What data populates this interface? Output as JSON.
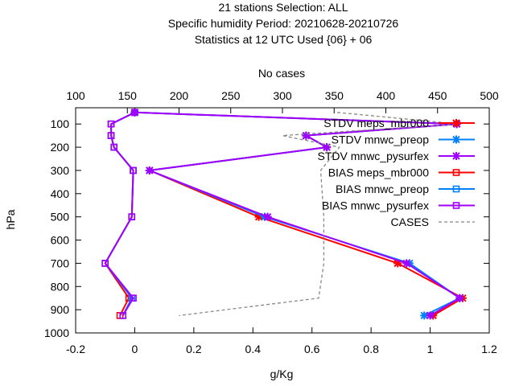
{
  "chart_data": {
    "type": "line",
    "title_lines": [
      "21 stations Selection: ALL",
      "Specific humidity  Period: 20210628-20210726",
      "Statistics at 12 UTC  Used {06} + 06"
    ],
    "xlabel": "g/Kg",
    "ylabel": "hPa",
    "x2label": "No cases",
    "xlim": [
      -0.2,
      1.2
    ],
    "ylim": [
      1000,
      30
    ],
    "x2lim": [
      100,
      500
    ],
    "xticks": [
      "-0.2",
      "0",
      "0.2",
      "0.4",
      "0.6",
      "0.8",
      "1",
      "1.2"
    ],
    "yticks": [
      "100",
      "200",
      "300",
      "400",
      "500",
      "600",
      "700",
      "800",
      "900",
      "1000"
    ],
    "x2ticks": [
      "100",
      "150",
      "200",
      "250",
      "300",
      "350",
      "400",
      "450",
      "500"
    ],
    "legend_position": "top-right",
    "levels": [
      50,
      100,
      150,
      200,
      300,
      500,
      700,
      850,
      925
    ],
    "series": [
      {
        "name": "STDV meps_mbr000",
        "color": "#ff0000",
        "marker": "x",
        "x": [
          0.0,
          1.09,
          0.58,
          0.65,
          0.05,
          0.42,
          0.89,
          1.11,
          1.01
        ]
      },
      {
        "name": "STDV mnwc_preop",
        "color": "#0080ff",
        "marker": "x",
        "x": [
          0.0,
          1.09,
          0.58,
          0.65,
          0.05,
          0.44,
          0.93,
          1.1,
          0.98
        ]
      },
      {
        "name": "STDV mnwc_pysurfex",
        "color": "#a000ff",
        "marker": "x",
        "x": [
          0.0,
          1.09,
          0.58,
          0.65,
          0.05,
          0.45,
          0.92,
          1.1,
          1.0
        ]
      },
      {
        "name": "BIAS meps_mbr000",
        "color": "#ff0000",
        "marker": "box",
        "x": [
          0.0,
          -0.08,
          -0.08,
          -0.07,
          -0.005,
          -0.01,
          -0.1,
          -0.02,
          -0.05
        ]
      },
      {
        "name": "BIAS mnwc_preop",
        "color": "#0080ff",
        "marker": "box",
        "x": [
          0.0,
          -0.08,
          -0.08,
          -0.07,
          -0.005,
          -0.01,
          -0.1,
          -0.01,
          -0.04
        ]
      },
      {
        "name": "BIAS mnwc_pysurfex",
        "color": "#a000ff",
        "marker": "box",
        "x": [
          0.0,
          -0.08,
          -0.08,
          -0.07,
          -0.005,
          -0.01,
          -0.1,
          -0.005,
          -0.04
        ]
      },
      {
        "name": "CASES",
        "color": "#888888",
        "marker": "none",
        "axis": "x2",
        "x": [
          353,
          470,
          300,
          355,
          337,
          340,
          340,
          335,
          200
        ]
      }
    ]
  }
}
